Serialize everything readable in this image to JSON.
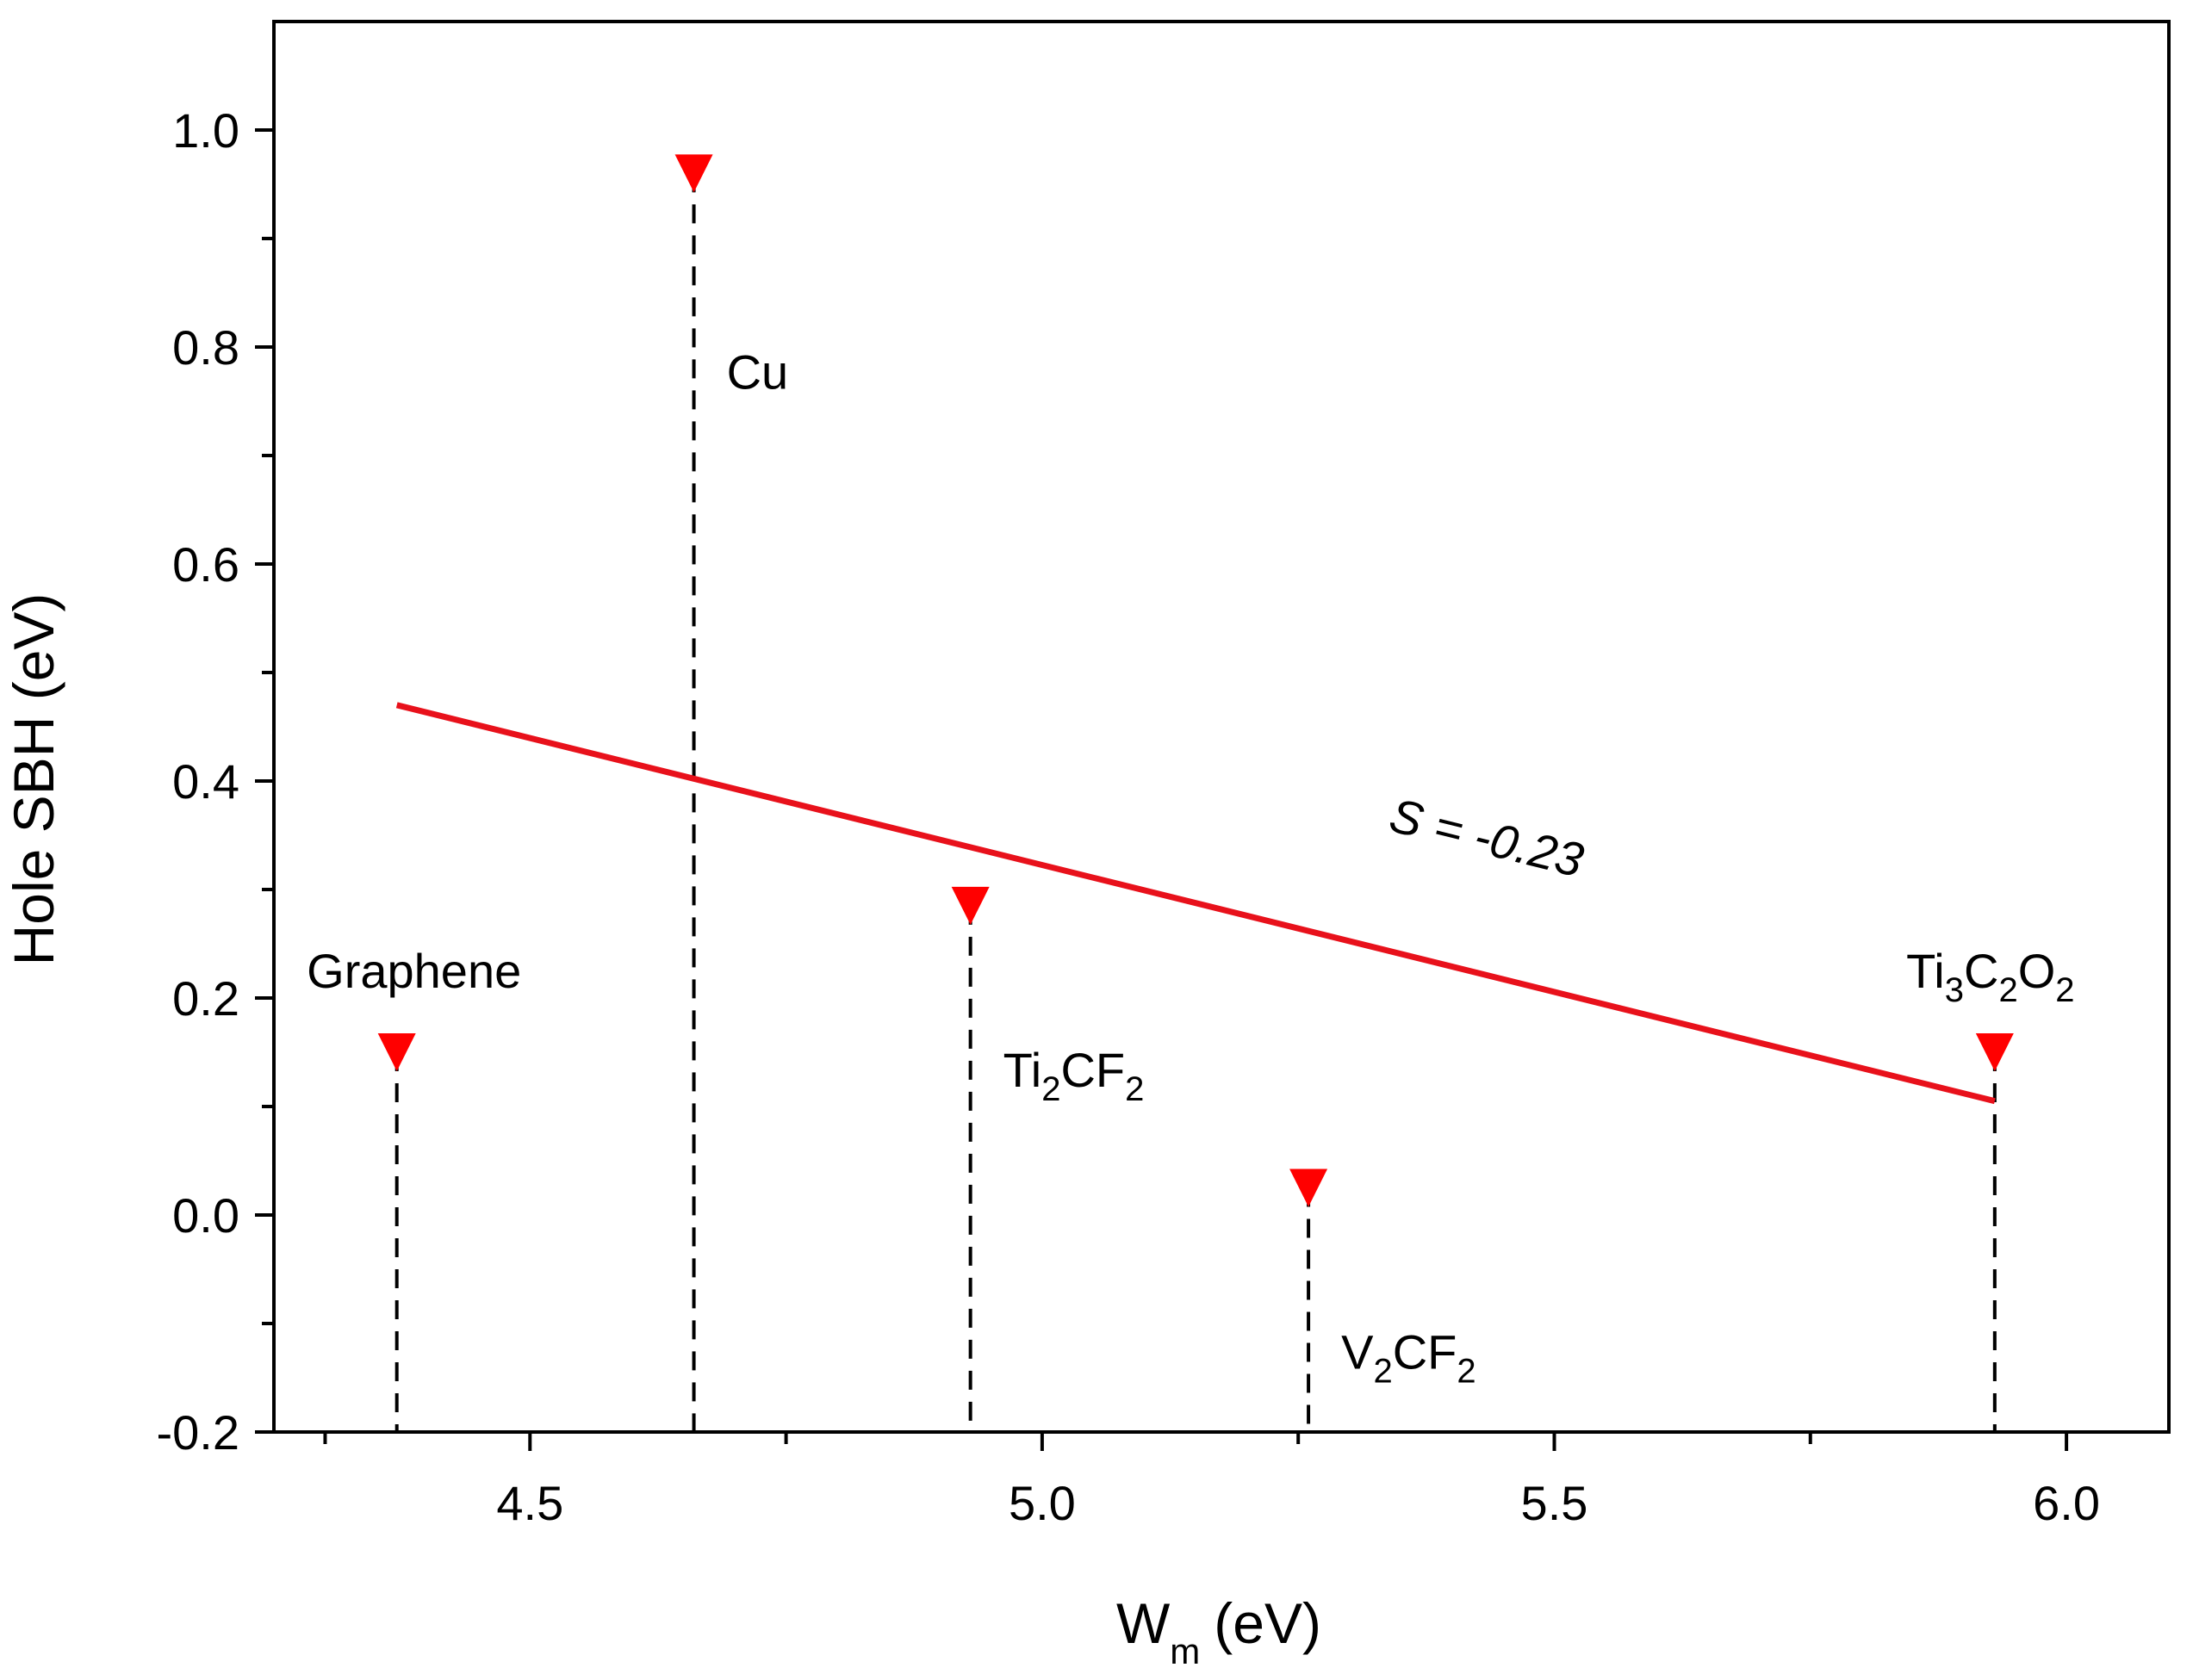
{
  "chart_data": {
    "type": "scatter",
    "title": "",
    "xlabel": {
      "main": "W",
      "sub": "m",
      "unit": "(eV)"
    },
    "ylabel": "Hole SBH (eV)",
    "xlim": [
      4.25,
      6.1
    ],
    "ylim": [
      -0.2,
      1.1
    ],
    "x_ticks": [
      4.5,
      5.0,
      5.5,
      6.0
    ],
    "x_tick_labels": [
      "4.5",
      "5.0",
      "5.5",
      "6.0"
    ],
    "x_minor_ticks": [
      4.3,
      4.75,
      5.25,
      5.75
    ],
    "y_ticks": [
      -0.2,
      0.0,
      0.2,
      0.4,
      0.6,
      0.8,
      1.0
    ],
    "y_tick_labels": [
      "-0.2",
      "0.0",
      "0.2",
      "0.4",
      "0.6",
      "0.8",
      "1.0"
    ],
    "y_minor_ticks": [
      -0.1,
      0.1,
      0.3,
      0.5,
      0.7,
      0.9
    ],
    "grid": false,
    "marker_color": "#ff0000",
    "line_color": "#e8111b",
    "points": [
      {
        "name": "Graphene",
        "label_parts": [
          {
            "t": "Graphene"
          }
        ],
        "x": 4.37,
        "y": 0.15,
        "label_pos": "above"
      },
      {
        "name": "Cu",
        "label_parts": [
          {
            "t": "Cu"
          }
        ],
        "x": 4.66,
        "y": 0.96,
        "label_pos": "right"
      },
      {
        "name": "Ti2CF2",
        "label_parts": [
          {
            "t": "Ti"
          },
          {
            "t": "2",
            "sub": true
          },
          {
            "t": "CF"
          },
          {
            "t": "2",
            "sub": true
          }
        ],
        "x": 4.93,
        "y": 0.285,
        "label_pos": "right"
      },
      {
        "name": "V2CF2",
        "label_parts": [
          {
            "t": "V"
          },
          {
            "t": "2",
            "sub": true
          },
          {
            "t": "CF"
          },
          {
            "t": "2",
            "sub": true
          }
        ],
        "x": 5.26,
        "y": 0.025,
        "label_pos": "right"
      },
      {
        "name": "Ti3C2O2",
        "label_parts": [
          {
            "t": "Ti"
          },
          {
            "t": "3",
            "sub": true
          },
          {
            "t": "C"
          },
          {
            "t": "2",
            "sub": true
          },
          {
            "t": "O"
          },
          {
            "t": "2",
            "sub": true
          }
        ],
        "x": 5.93,
        "y": 0.15,
        "label_pos": "above"
      }
    ],
    "fit_line": {
      "x": [
        4.37,
        5.93
      ],
      "y": [
        0.47,
        0.105
      ],
      "label": "S = -0.23"
    }
  }
}
